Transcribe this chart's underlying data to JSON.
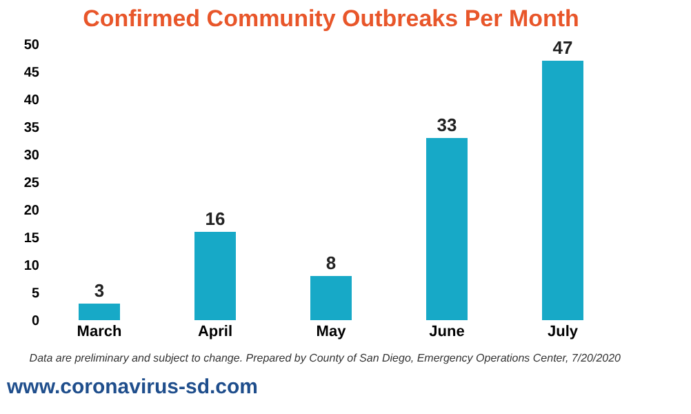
{
  "chart_data": {
    "type": "bar",
    "title": "Confirmed Community Outbreaks Per Month",
    "categories": [
      "March",
      "April",
      "May",
      "June",
      "July"
    ],
    "values": [
      3,
      16,
      8,
      33,
      47
    ],
    "color": "#17a9c7",
    "ylim": [
      0,
      50
    ],
    "yticks": [
      0,
      5,
      10,
      15,
      20,
      25,
      30,
      35,
      40,
      45,
      50
    ],
    "grid": false,
    "data_labels": true,
    "annotations": [
      "Data are preliminary and subject to change.  Prepared by County of San Diego, Emergency Operations Center, 7/20/2020",
      "www.coronavirus-sd.com"
    ]
  }
}
